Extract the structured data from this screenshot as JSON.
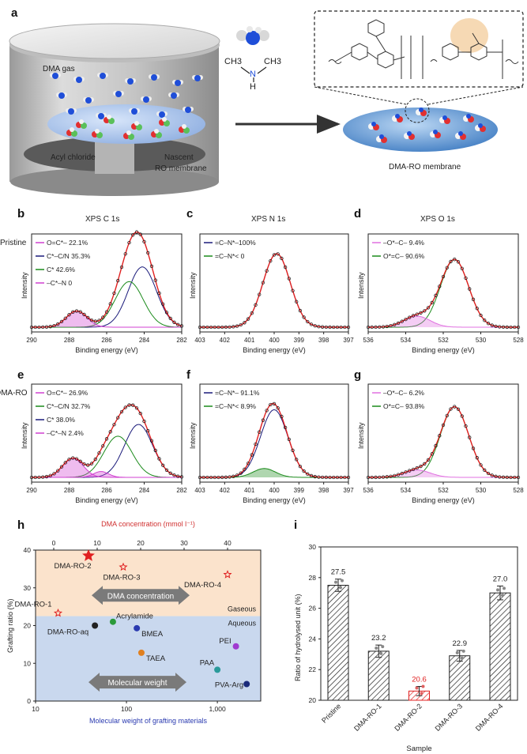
{
  "panel_labels": {
    "a": "a",
    "b": "b",
    "c": "c",
    "d": "d",
    "e": "e",
    "f": "f",
    "g": "g",
    "h": "h",
    "i": "i"
  },
  "panel_a": {
    "dma_gas": "DMA gas",
    "acyl_chloride": "Acyl chloride",
    "nascent_1": "Nascent",
    "nascent_2": "RO membrane",
    "ch3_left": "CH3",
    "ch3_right": "CH3",
    "n_atom": "N",
    "h_atom": "H",
    "membrane_label": "DMA-RO membrane"
  },
  "row_labels": {
    "pristine": "Pristine",
    "dmaro": "DMA-RO"
  },
  "xps": {
    "c1s_title": "XPS  C 1s",
    "n1s_title": "XPS  N 1s",
    "o1s_title": "XPS  O 1s",
    "xlabel": "Binding energy (eV)",
    "ylabel": "Intensity",
    "c_ticks": [
      "290",
      "288",
      "286",
      "284",
      "282"
    ],
    "n_ticks": [
      "403",
      "402",
      "401",
      "400",
      "399",
      "398",
      "397"
    ],
    "o_ticks": [
      "536",
      "534",
      "532",
      "530",
      "528"
    ],
    "b_legend": [
      {
        "name": "O=C*–",
        "value": "22.1%",
        "color": "#d040d0"
      },
      {
        "name": "C*–C/N",
        "value": "35.3%",
        "color": "#1a1a7a"
      },
      {
        "name": "C*",
        "value": "42.6%",
        "color": "#1a8a1a"
      },
      {
        "name": "–C*–N",
        "value": "0",
        "color": "#d040d0"
      }
    ],
    "e_legend": [
      {
        "name": "O=C*–",
        "value": "26.9%",
        "color": "#d040d0"
      },
      {
        "name": "C*–C/N",
        "value": "32.7%",
        "color": "#1a8a1a"
      },
      {
        "name": "C*",
        "value": "38.0%",
        "color": "#1a1a7a"
      },
      {
        "name": "–C*–N",
        "value": "2.4%",
        "color": "#d040d0"
      }
    ],
    "c_legend": [
      {
        "text": "=C–N*–100%",
        "color": "#1a1a7a"
      },
      {
        "text": "=C–N*< 0",
        "color": "#1a8a1a"
      }
    ],
    "f_legend": [
      {
        "text": "=C–N*– 91.1%",
        "color": "#1a1a7a"
      },
      {
        "text": "=C–N*< 8.9%",
        "color": "#1a8a1a"
      }
    ],
    "d_legend": [
      {
        "text": "–O*–C– 9.4%",
        "color": "#e070e0"
      },
      {
        "text": "O*=C– 90.6%",
        "color": "#1a8a1a"
      }
    ],
    "g_legend": [
      {
        "text": "–O*–C– 6.2%",
        "color": "#e070e0"
      },
      {
        "text": "O*=C– 93.8%",
        "color": "#1a8a1a"
      }
    ]
  },
  "chart_data": [
    {
      "type": "scatter",
      "panel": "h",
      "top_axis_label": "DMA concentration (mmol l⁻¹)",
      "top_ticks": [
        "0",
        "10",
        "20",
        "30",
        "40"
      ],
      "xlabel": "Molecular weight of grafting materials",
      "ylabel": "Grafting ratio (%)",
      "x_ticks": [
        "10",
        "100",
        "1,000"
      ],
      "y_ticks": [
        "0",
        "10",
        "20",
        "30",
        "40"
      ],
      "ylim": [
        0,
        40
      ],
      "region_gaseous": "Gaseous",
      "region_aqueous": "Aqueous",
      "arrow_dma": "DMA concentration",
      "arrow_mw": "Molecular weight",
      "gaseous_points": [
        {
          "label": "DMA-RO-1",
          "dma_conc": 1,
          "ratio": 23.3,
          "highlight": false
        },
        {
          "label": "DMA-RO-2",
          "dma_conc": 8,
          "ratio": 38.5,
          "highlight": true
        },
        {
          "label": "DMA-RO-3",
          "dma_conc": 16,
          "ratio": 35.5,
          "highlight": false
        },
        {
          "label": "DMA-RO-4",
          "dma_conc": 40,
          "ratio": 33.5,
          "highlight": false
        }
      ],
      "aqueous_points": [
        {
          "label": "DMA-RO-aq",
          "mw": 45,
          "ratio": 20,
          "color": "#222222"
        },
        {
          "label": "Acrylamide",
          "mw": 71,
          "ratio": 21,
          "color": "#2a9a3a"
        },
        {
          "label": "BMEA",
          "mw": 130,
          "ratio": 19.3,
          "color": "#2a3ab0"
        },
        {
          "label": "TAEA",
          "mw": 146,
          "ratio": 12.8,
          "color": "#e08020"
        },
        {
          "label": "PAA",
          "mw": 1000,
          "ratio": 8.3,
          "color": "#2a9a9a"
        },
        {
          "label": "PEI",
          "mw": 1600,
          "ratio": 14.5,
          "color": "#a03ad0"
        },
        {
          "label": "PVA-Arg",
          "mw": 2100,
          "ratio": 4.5,
          "color": "#1a2a7a"
        }
      ]
    },
    {
      "type": "bar",
      "panel": "i",
      "categories": [
        "Pristine",
        "DMA-RO-1",
        "DMA-RO-2",
        "DMA-RO-3",
        "DMA-RO-4"
      ],
      "values": [
        27.5,
        23.2,
        20.6,
        22.9,
        27.0
      ],
      "value_labels": [
        "27.5",
        "23.2",
        "20.6",
        "22.9",
        "27.0"
      ],
      "errors": [
        0.4,
        0.4,
        0.3,
        0.35,
        0.45
      ],
      "highlight_index": 2,
      "ylabel": "Ratio of hydrolysed unit (%)",
      "xlabel": "Sample",
      "ylim": [
        20,
        30
      ],
      "y_ticks": [
        "20",
        "22",
        "24",
        "26",
        "28",
        "30"
      ]
    }
  ]
}
